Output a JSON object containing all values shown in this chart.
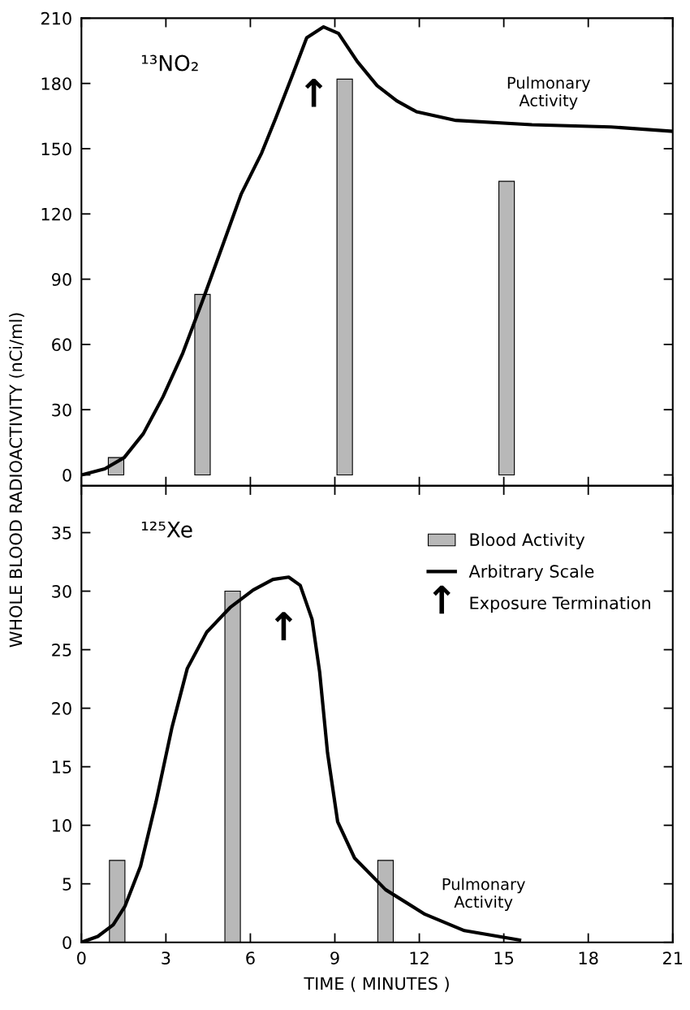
{
  "chart_data": [
    {
      "type": "bar",
      "title": "¹³NO₂",
      "ylabel": "WHOLE BLOOD RADIOACTIVITY (nCi/ml)",
      "xlim": [
        0,
        21
      ],
      "xticks": [
        0,
        3,
        6,
        9,
        12,
        15,
        18,
        21
      ],
      "ylim": [
        -5,
        210
      ],
      "yticks": [
        0,
        30,
        60,
        90,
        120,
        150,
        180,
        210
      ],
      "tick_labels": "y",
      "annotations": [
        "Pulmonary\nActivity",
        "↑"
      ],
      "series": [
        {
          "color": "#b8b8b8",
          "x": [
            1.23,
            4.3,
            9.35,
            15.1
          ],
          "values": [
            8,
            83,
            182,
            135
          ]
        },
        {
          "type": "line",
          "color": "#000000",
          "x": [
            0,
            0.83,
            1.52,
            2.2,
            2.9,
            3.6,
            4.3,
            5.0,
            5.67,
            6.4,
            6.9,
            7.5,
            8.0,
            8.6,
            9.13,
            9.8,
            10.5,
            11.2,
            11.9,
            13.3,
            16,
            18.8,
            21
          ],
          "values": [
            0,
            2.8,
            8,
            19,
            36,
            56,
            80,
            105,
            129,
            148,
            164,
            184,
            201,
            206,
            203,
            190,
            179,
            172,
            167,
            163,
            161,
            160,
            158
          ]
        }
      ]
    },
    {
      "type": "bar",
      "title": "¹²⁵Xe",
      "xlabel": "TIME ( MINUTES )",
      "xlim": [
        0,
        21
      ],
      "xticks": [
        0,
        3,
        6,
        9,
        12,
        15,
        18,
        21
      ],
      "ylim": [
        0,
        39
      ],
      "yticks": [
        0,
        5,
        10,
        15,
        20,
        25,
        30,
        35
      ],
      "legend": "top right",
      "annotations": [
        "Pulmonary\nActivity",
        "↑",
        "Exposure Termination"
      ],
      "series": [
        {
          "name": "Blood Activity",
          "color": "#b8b8b8",
          "x": [
            1.27,
            5.37,
            10.8
          ],
          "values": [
            7,
            30,
            7
          ]
        },
        {
          "type": "line",
          "name": "Arbitrary Scale",
          "color": "#000000",
          "x": [
            0,
            0.58,
            1.13,
            1.55,
            2.1,
            2.65,
            3.21,
            3.76,
            4.45,
            5.28,
            6.1,
            6.8,
            7.36,
            7.77,
            8.19,
            8.46,
            8.74,
            9.1,
            9.7,
            10.8,
            12.2,
            13.6,
            15.56
          ],
          "values": [
            0,
            0.5,
            1.5,
            3.1,
            6.5,
            12,
            18.3,
            23.4,
            26.5,
            28.6,
            30.1,
            31,
            31.2,
            30.5,
            27.6,
            23.1,
            16.2,
            10.3,
            7.2,
            4.5,
            2.4,
            1.0,
            0.2
          ]
        }
      ]
    }
  ]
}
